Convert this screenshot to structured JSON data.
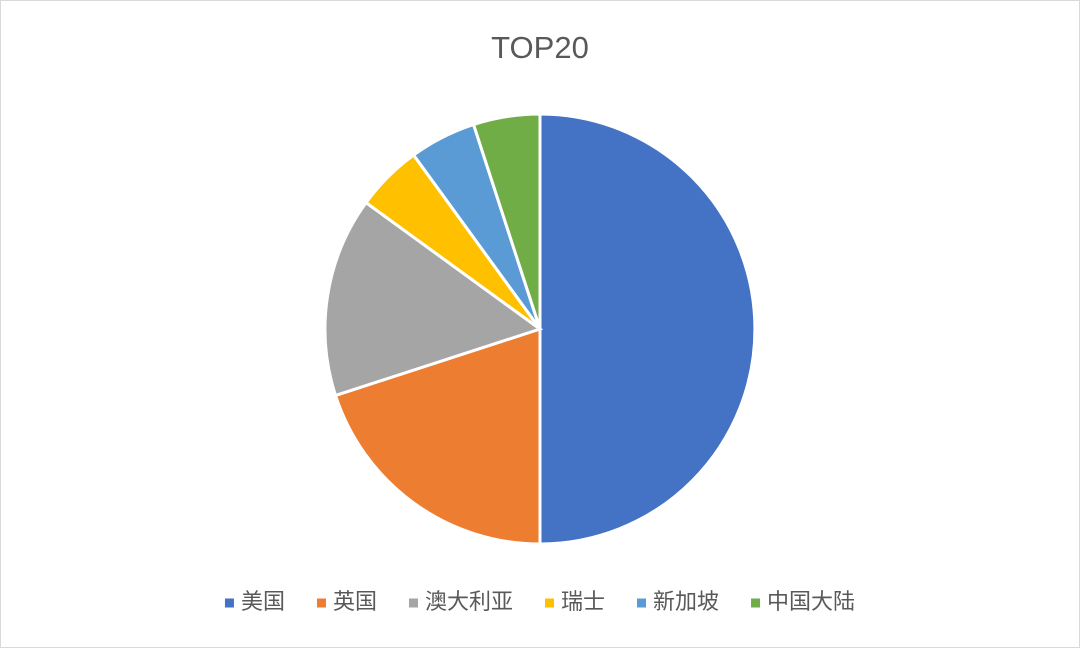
{
  "chart_data": {
    "type": "pie",
    "title": "TOP20",
    "categories": [
      "美国",
      "英国",
      "澳大利亚",
      "瑞士",
      "新加坡",
      "中国大陆"
    ],
    "values": [
      10,
      4,
      3,
      1,
      1,
      1
    ],
    "colors": [
      "#4472c4",
      "#ed7d31",
      "#a5a5a5",
      "#ffc000",
      "#5b9bd5",
      "#70ad47"
    ],
    "legend": "bottom"
  }
}
